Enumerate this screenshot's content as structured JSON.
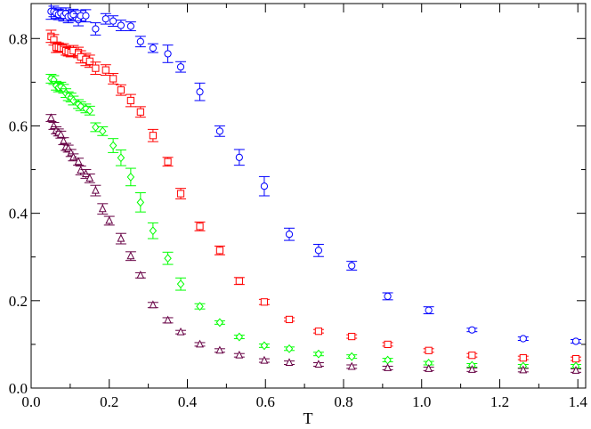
{
  "chart_data": {
    "type": "scatter",
    "title": "",
    "xlabel": "T",
    "ylabel": "",
    "xlim": [
      0,
      1.42
    ],
    "ylim": [
      0,
      0.88
    ],
    "grid": false,
    "legend": "none",
    "xticks": [
      0,
      0.2,
      0.4,
      0.6,
      0.8,
      1.0,
      1.2,
      1.4
    ],
    "xtick_labels": [
      "0.0",
      "0.2",
      "0.4",
      "0.6",
      "0.8",
      "1.0",
      "1.2",
      "1.4"
    ],
    "yticks": [
      0,
      0.2,
      0.4,
      0.6,
      0.8
    ],
    "ytick_labels": [
      "0.0",
      "0.2",
      "0.4",
      "0.6",
      "0.8"
    ],
    "series": [
      {
        "marker": "circle",
        "color": "#0000ff",
        "points": [
          [
            0.051,
            0.862,
            0.018
          ],
          [
            0.058,
            0.862,
            0.012
          ],
          [
            0.064,
            0.858,
            0.012
          ],
          [
            0.07,
            0.855,
            0.012
          ],
          [
            0.076,
            0.858,
            0.012
          ],
          [
            0.083,
            0.852,
            0.012
          ],
          [
            0.089,
            0.858,
            0.012
          ],
          [
            0.095,
            0.85,
            0.014
          ],
          [
            0.102,
            0.852,
            0.012
          ],
          [
            0.108,
            0.855,
            0.012
          ],
          [
            0.121,
            0.843,
            0.014
          ],
          [
            0.127,
            0.852,
            0.012
          ],
          [
            0.14,
            0.852,
            0.014
          ],
          [
            0.165,
            0.822,
            0.014
          ],
          [
            0.191,
            0.845,
            0.012
          ],
          [
            0.21,
            0.84,
            0.012
          ],
          [
            0.23,
            0.83,
            0.012
          ],
          [
            0.255,
            0.828,
            0.01
          ],
          [
            0.28,
            0.793,
            0.012
          ],
          [
            0.312,
            0.778,
            0.01
          ],
          [
            0.35,
            0.765,
            0.02
          ],
          [
            0.383,
            0.735,
            0.012
          ],
          [
            0.432,
            0.678,
            0.02
          ],
          [
            0.483,
            0.588,
            0.012
          ],
          [
            0.533,
            0.528,
            0.018
          ],
          [
            0.597,
            0.462,
            0.022
          ],
          [
            0.661,
            0.352,
            0.014
          ],
          [
            0.736,
            0.315,
            0.014
          ],
          [
            0.821,
            0.28,
            0.01
          ],
          [
            0.913,
            0.21,
            0.008
          ],
          [
            1.018,
            0.178,
            0.008
          ],
          [
            1.129,
            0.133,
            0.004
          ],
          [
            1.26,
            0.113,
            0.004
          ],
          [
            1.395,
            0.107,
            0.004
          ]
        ]
      },
      {
        "marker": "square",
        "color": "#ff0000",
        "points": [
          [
            0.051,
            0.805,
            0.014
          ],
          [
            0.058,
            0.797,
            0.012
          ],
          [
            0.064,
            0.78,
            0.012
          ],
          [
            0.07,
            0.78,
            0.01
          ],
          [
            0.076,
            0.778,
            0.01
          ],
          [
            0.083,
            0.778,
            0.01
          ],
          [
            0.089,
            0.772,
            0.01
          ],
          [
            0.095,
            0.77,
            0.01
          ],
          [
            0.102,
            0.768,
            0.01
          ],
          [
            0.108,
            0.772,
            0.012
          ],
          [
            0.121,
            0.768,
            0.012
          ],
          [
            0.127,
            0.758,
            0.014
          ],
          [
            0.14,
            0.752,
            0.014
          ],
          [
            0.15,
            0.748,
            0.014
          ],
          [
            0.165,
            0.732,
            0.014
          ],
          [
            0.191,
            0.728,
            0.012
          ],
          [
            0.21,
            0.708,
            0.012
          ],
          [
            0.23,
            0.682,
            0.012
          ],
          [
            0.255,
            0.658,
            0.014
          ],
          [
            0.28,
            0.632,
            0.012
          ],
          [
            0.312,
            0.578,
            0.014
          ],
          [
            0.35,
            0.518,
            0.01
          ],
          [
            0.383,
            0.445,
            0.012
          ],
          [
            0.432,
            0.37,
            0.01
          ],
          [
            0.483,
            0.315,
            0.01
          ],
          [
            0.533,
            0.245,
            0.008
          ],
          [
            0.597,
            0.197,
            0.006
          ],
          [
            0.661,
            0.157,
            0.004
          ],
          [
            0.736,
            0.13,
            0.004
          ],
          [
            0.821,
            0.118,
            0.004
          ],
          [
            0.913,
            0.1,
            0.004
          ],
          [
            1.018,
            0.086,
            0.004
          ],
          [
            1.129,
            0.075,
            0.004
          ],
          [
            1.26,
            0.069,
            0.004
          ],
          [
            1.395,
            0.067,
            0.004
          ]
        ]
      },
      {
        "marker": "diamond",
        "color": "#00ff00",
        "points": [
          [
            0.051,
            0.708,
            0.01
          ],
          [
            0.058,
            0.705,
            0.01
          ],
          [
            0.064,
            0.692,
            0.01
          ],
          [
            0.07,
            0.688,
            0.01
          ],
          [
            0.076,
            0.69,
            0.01
          ],
          [
            0.083,
            0.685,
            0.01
          ],
          [
            0.089,
            0.675,
            0.01
          ],
          [
            0.095,
            0.668,
            0.01
          ],
          [
            0.102,
            0.665,
            0.01
          ],
          [
            0.108,
            0.658,
            0.01
          ],
          [
            0.121,
            0.65,
            0.01
          ],
          [
            0.127,
            0.645,
            0.01
          ],
          [
            0.14,
            0.64,
            0.01
          ],
          [
            0.15,
            0.635,
            0.01
          ],
          [
            0.165,
            0.597,
            0.01
          ],
          [
            0.183,
            0.588,
            0.01
          ],
          [
            0.21,
            0.555,
            0.016
          ],
          [
            0.23,
            0.527,
            0.018
          ],
          [
            0.255,
            0.483,
            0.02
          ],
          [
            0.28,
            0.425,
            0.022
          ],
          [
            0.312,
            0.36,
            0.018
          ],
          [
            0.35,
            0.297,
            0.014
          ],
          [
            0.383,
            0.238,
            0.014
          ],
          [
            0.432,
            0.187,
            0.006
          ],
          [
            0.483,
            0.15,
            0.004
          ],
          [
            0.533,
            0.117,
            0.004
          ],
          [
            0.597,
            0.097,
            0.004
          ],
          [
            0.661,
            0.09,
            0.004
          ],
          [
            0.736,
            0.078,
            0.004
          ],
          [
            0.821,
            0.072,
            0.004
          ],
          [
            0.913,
            0.064,
            0.004
          ],
          [
            1.018,
            0.057,
            0.004
          ],
          [
            1.129,
            0.052,
            0.004
          ],
          [
            1.26,
            0.05,
            0.004
          ],
          [
            1.395,
            0.05,
            0.004
          ]
        ]
      },
      {
        "marker": "triangle",
        "color": "#660044",
        "points": [
          [
            0.051,
            0.618,
            0.008
          ],
          [
            0.058,
            0.6,
            0.008
          ],
          [
            0.064,
            0.59,
            0.008
          ],
          [
            0.07,
            0.585,
            0.008
          ],
          [
            0.076,
            0.58,
            0.008
          ],
          [
            0.083,
            0.565,
            0.008
          ],
          [
            0.089,
            0.552,
            0.008
          ],
          [
            0.095,
            0.548,
            0.008
          ],
          [
            0.102,
            0.538,
            0.008
          ],
          [
            0.108,
            0.528,
            0.008
          ],
          [
            0.121,
            0.518,
            0.008
          ],
          [
            0.127,
            0.498,
            0.01
          ],
          [
            0.14,
            0.49,
            0.01
          ],
          [
            0.15,
            0.48,
            0.01
          ],
          [
            0.165,
            0.452,
            0.012
          ],
          [
            0.183,
            0.41,
            0.012
          ],
          [
            0.2,
            0.383,
            0.01
          ],
          [
            0.23,
            0.342,
            0.012
          ],
          [
            0.255,
            0.302,
            0.01
          ],
          [
            0.28,
            0.258,
            0.006
          ],
          [
            0.312,
            0.19,
            0.006
          ],
          [
            0.35,
            0.155,
            0.006
          ],
          [
            0.383,
            0.128,
            0.004
          ],
          [
            0.432,
            0.1,
            0.004
          ],
          [
            0.483,
            0.086,
            0.004
          ],
          [
            0.533,
            0.075,
            0.004
          ],
          [
            0.597,
            0.063,
            0.004
          ],
          [
            0.661,
            0.058,
            0.004
          ],
          [
            0.736,
            0.054,
            0.004
          ],
          [
            0.821,
            0.049,
            0.004
          ],
          [
            0.913,
            0.046,
            0.004
          ],
          [
            1.018,
            0.044,
            0.004
          ],
          [
            1.129,
            0.042,
            0.004
          ],
          [
            1.26,
            0.041,
            0.004
          ],
          [
            1.395,
            0.04,
            0.004
          ]
        ]
      }
    ]
  }
}
